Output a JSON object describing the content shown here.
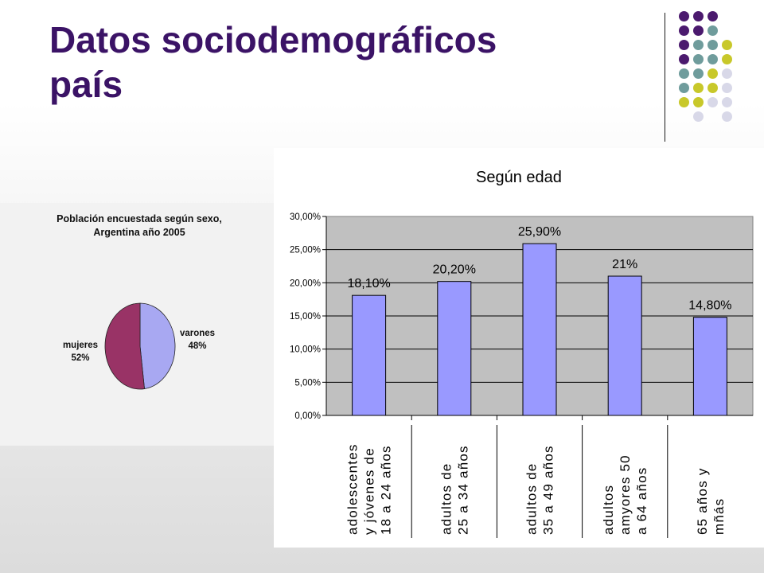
{
  "slide": {
    "title": "Datos sociodemográficos\npaís",
    "colors": {
      "title": "#3b1366",
      "dots": [
        "#4b1a6e",
        "#6f9c9c",
        "#c8c82a",
        "#d8d8e8"
      ]
    }
  },
  "chart_data": [
    {
      "type": "pie",
      "title": "Población encuestada según sexo,\nArgentina año 2005",
      "slices": [
        {
          "name": "varones",
          "value": 48,
          "label": "48%",
          "color": "#a8a8f2"
        },
        {
          "name": "mujeres",
          "value": 52,
          "label": "52%",
          "color": "#993366"
        }
      ]
    },
    {
      "type": "bar",
      "title": "Según edad",
      "categories": [
        [
          "adolescentes",
          "y jóvenes de",
          "18 a 24 años"
        ],
        [
          "adultos de",
          "25 a 34 años"
        ],
        [
          "adultos de",
          "35 a 49 años"
        ],
        [
          "adultos",
          "amyores 50",
          "a 64 años"
        ],
        [
          "65 años y",
          "mñás"
        ]
      ],
      "values": [
        18.1,
        20.2,
        25.9,
        21,
        14.8
      ],
      "data_labels": [
        "18,10%",
        "20,20%",
        "25,90%",
        "21%",
        "14,80%"
      ],
      "yticks": [
        "0,00%",
        "5,00%",
        "10,00%",
        "15,00%",
        "20,00%",
        "25,00%",
        "30,00%"
      ],
      "ylim": [
        0,
        30
      ],
      "grid": true,
      "colors": {
        "bar": "#9999ff",
        "plot_background": "#c0c0c0"
      }
    }
  ]
}
